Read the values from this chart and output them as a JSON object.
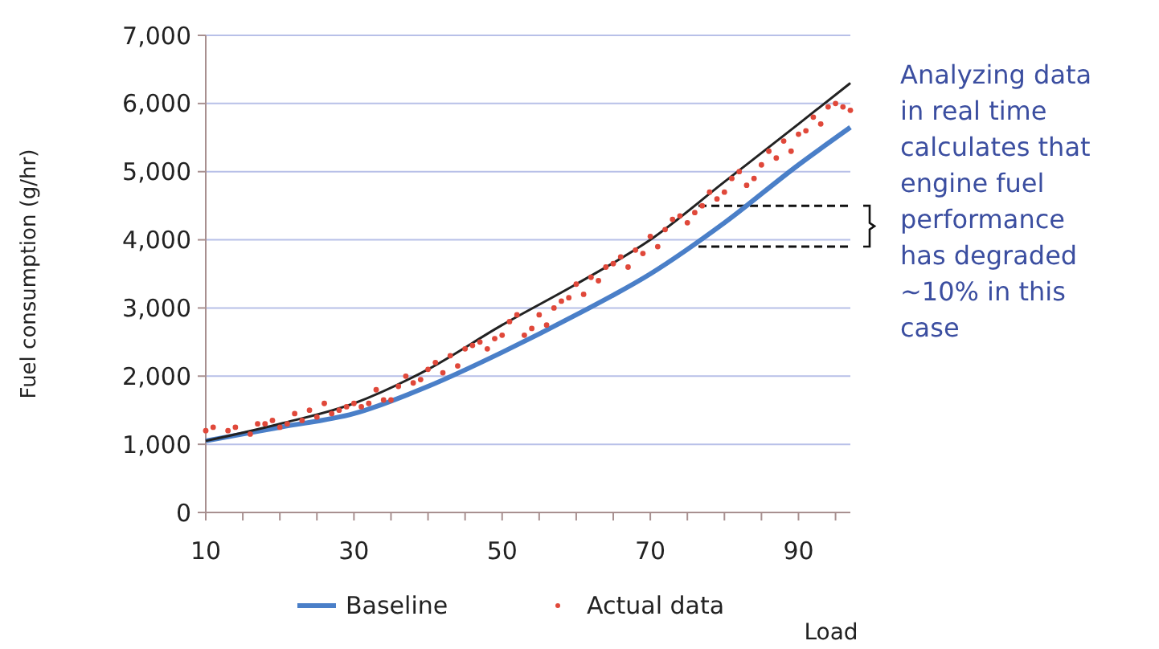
{
  "chart_data": {
    "type": "line",
    "ylabel": "Fuel consumption (g/hr)",
    "xlabel": "Load",
    "xlim": [
      10,
      97
    ],
    "ylim": [
      0,
      7000
    ],
    "xticks": [
      10,
      {
        "value": 15,
        "label": null
      },
      {
        "value": 20,
        "label": null
      },
      {
        "value": 25,
        "label": null
      },
      30,
      {
        "value": 35,
        "label": null
      },
      {
        "value": 40,
        "label": null
      },
      {
        "value": 45,
        "label": null
      },
      50,
      {
        "value": 55,
        "label": null
      },
      {
        "value": 60,
        "label": null
      },
      {
        "value": 65,
        "label": null
      },
      70,
      {
        "value": 75,
        "label": null
      },
      {
        "value": 80,
        "label": null
      },
      {
        "value": 85,
        "label": null
      },
      90,
      {
        "value": 95,
        "label": null
      }
    ],
    "yticks": [
      {
        "value": 0,
        "label": "0"
      },
      {
        "value": 1000,
        "label": "1,000"
      },
      {
        "value": 2000,
        "label": "2,000"
      },
      {
        "value": 3000,
        "label": "3,000"
      },
      {
        "value": 4000,
        "label": "4,000"
      },
      {
        "value": 5000,
        "label": "5,000"
      },
      {
        "value": 6000,
        "label": "6,000"
      },
      {
        "value": 7000,
        "label": "7,000"
      }
    ],
    "grid": "y",
    "legend": "bottom",
    "series": [
      {
        "name": "Baseline",
        "color": "#4a7fc8",
        "x": [
          10,
          20,
          30,
          40,
          50,
          60,
          70,
          80,
          90,
          97
        ],
        "values": [
          1050,
          1250,
          1450,
          1850,
          2350,
          2900,
          3500,
          4250,
          5100,
          5650
        ]
      },
      {
        "color": "#222222",
        "x": [
          10,
          20,
          30,
          40,
          50,
          60,
          70,
          80,
          90,
          97
        ],
        "values": [
          1050,
          1300,
          1600,
          2100,
          2750,
          3350,
          4000,
          4850,
          5700,
          6300
        ]
      },
      {
        "name": "Actual data",
        "type": "scatter",
        "marker": "circle",
        "color": "#e0483a",
        "x": [
          10,
          11,
          13,
          14,
          16,
          17,
          18,
          19,
          20,
          21,
          22,
          23,
          24,
          25,
          26,
          27,
          28,
          29,
          30,
          31,
          32,
          33,
          34,
          35,
          36,
          37,
          38,
          39,
          40,
          41,
          42,
          43,
          44,
          45,
          46,
          47,
          48,
          49,
          50,
          51,
          52,
          53,
          54,
          55,
          56,
          57,
          58,
          59,
          60,
          61,
          62,
          63,
          64,
          65,
          66,
          67,
          68,
          69,
          70,
          71,
          72,
          73,
          74,
          75,
          76,
          77,
          78,
          79,
          80,
          81,
          82,
          83,
          84,
          85,
          86,
          87,
          88,
          89,
          90,
          91,
          92,
          93,
          94,
          95,
          96,
          97
        ],
        "values": [
          1200,
          1250,
          1200,
          1250,
          1150,
          1300,
          1300,
          1350,
          1250,
          1300,
          1450,
          1350,
          1500,
          1400,
          1600,
          1450,
          1500,
          1550,
          1600,
          1550,
          1600,
          1800,
          1650,
          1650,
          1850,
          2000,
          1900,
          1950,
          2100,
          2200,
          2050,
          2300,
          2150,
          2400,
          2450,
          2500,
          2400,
          2550,
          2600,
          2800,
          2900,
          2600,
          2700,
          2900,
          2750,
          3000,
          3100,
          3150,
          3350,
          3200,
          3450,
          3400,
          3600,
          3650,
          3750,
          3600,
          3850,
          3800,
          4050,
          3900,
          4150,
          4300,
          4350,
          4250,
          4400,
          4500,
          4700,
          4600,
          4700,
          4900,
          5000,
          4800,
          4900,
          5100,
          5300,
          5200,
          5450,
          5300,
          5550,
          5600,
          5800,
          5700,
          5950,
          6000,
          5950,
          5900
        ]
      }
    ],
    "annotations": [
      "Analyzing data in real time calculates that engine fuel performance has degraded ~10% in this case"
    ]
  }
}
